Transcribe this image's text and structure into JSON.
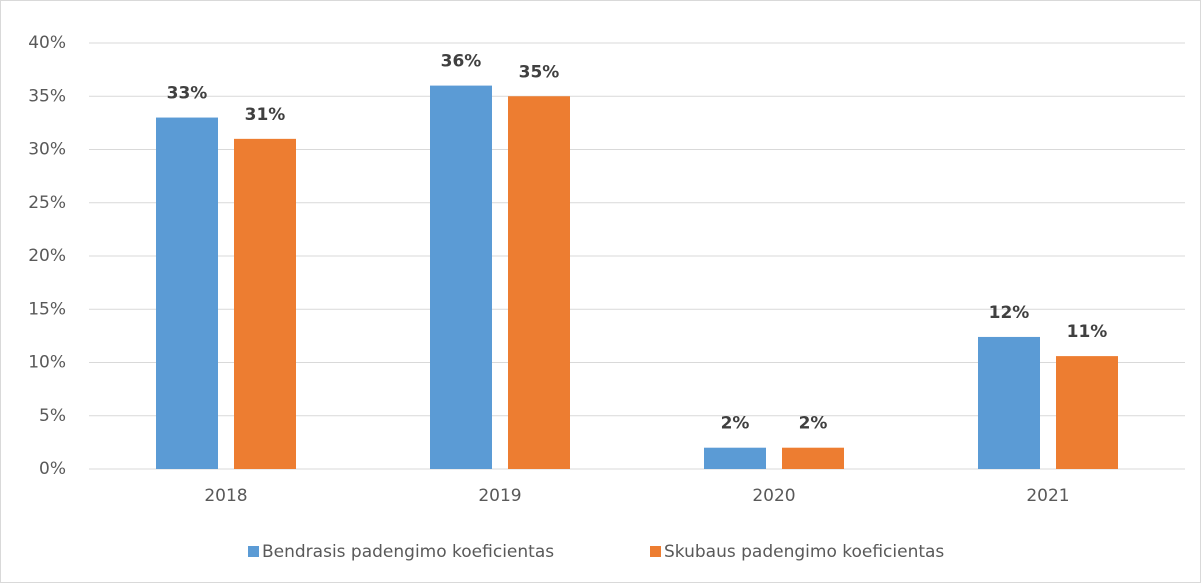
{
  "chart_data": {
    "type": "bar",
    "categories": [
      "2018",
      "2019",
      "2020",
      "2021"
    ],
    "series": [
      {
        "name": "Bendrasis padengimo koeficientas",
        "color": "#5b9bd5",
        "values": [
          33,
          36,
          2,
          12.4
        ],
        "value_labels": [
          "33%",
          "36%",
          "2%",
          "12%"
        ]
      },
      {
        "name": "Skubaus padengimo koeficientas",
        "color": "#ed7d31",
        "values": [
          31,
          35,
          2,
          10.6
        ],
        "value_labels": [
          "31%",
          "35%",
          "2%",
          "11%"
        ]
      }
    ],
    "ylim": [
      0,
      40
    ],
    "yticks": [
      {
        "value": 0,
        "label": "0%"
      },
      {
        "value": 5,
        "label": "5%"
      },
      {
        "value": 10,
        "label": "10%"
      },
      {
        "value": 15,
        "label": "15%"
      },
      {
        "value": 20,
        "label": "20%"
      },
      {
        "value": 25,
        "label": "25%"
      },
      {
        "value": 30,
        "label": "30%"
      },
      {
        "value": 35,
        "label": "35%"
      },
      {
        "value": 40,
        "label": "40%"
      }
    ],
    "grid": true,
    "legend": "bottom"
  }
}
